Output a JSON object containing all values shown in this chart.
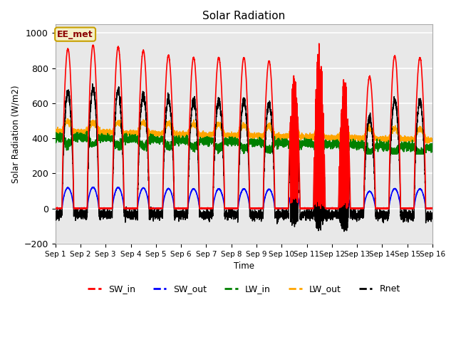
{
  "title": "Solar Radiation",
  "ylabel": "Solar Radiation (W/m2)",
  "xlabel": "Time",
  "ylim": [
    -200,
    1050
  ],
  "background_color": "#e8e8e8",
  "figure_bg": "#ffffff",
  "annotation_text": "EE_met",
  "annotation_bg": "#f5f0c8",
  "annotation_border": "#c8a000",
  "x_tick_labels": [
    "Sep 1",
    "Sep 2",
    "Sep 3",
    "Sep 4",
    "Sep 5",
    "Sep 6",
    "Sep 7",
    "Sep 8",
    "Sep 9",
    "Sep 10",
    "Sep 11",
    "Sep 12",
    "Sep 13",
    "Sep 14",
    "Sep 15",
    "Sep 16"
  ],
  "grid_color": "#d0d0d0",
  "series": {
    "SW_in": {
      "color": "red",
      "lw": 1.2
    },
    "SW_out": {
      "color": "blue",
      "lw": 1.2
    },
    "LW_in": {
      "color": "green",
      "lw": 1.2
    },
    "LW_out": {
      "color": "orange",
      "lw": 1.2
    },
    "Rnet": {
      "color": "black",
      "lw": 1.0
    }
  },
  "sw_peaks": [
    910,
    930,
    920,
    900,
    870,
    860,
    860,
    860,
    840,
    780,
    940,
    750,
    750,
    870,
    860
  ],
  "n_days": 15,
  "pts_per_day": 288
}
